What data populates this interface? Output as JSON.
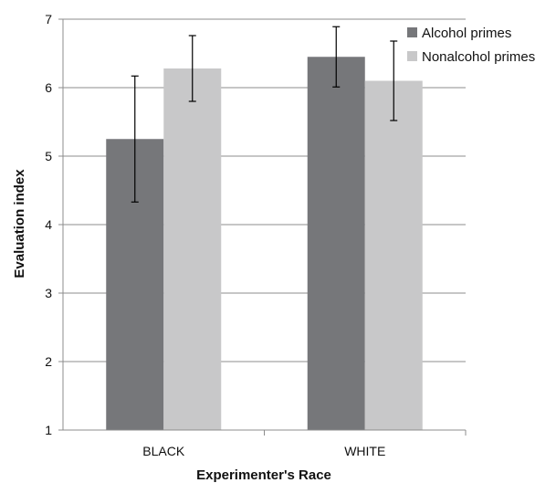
{
  "chart_data": {
    "type": "bar",
    "title": "",
    "xlabel": "Experimenter's Race",
    "ylabel": "Evaluation index",
    "categories": [
      "BLACK",
      "WHITE"
    ],
    "series": [
      {
        "name": "Alcohol primes",
        "values": [
          5.25,
          6.45
        ],
        "error": [
          0.92,
          0.44
        ],
        "color": "#76777a"
      },
      {
        "name": "Nonalcohol primes",
        "values": [
          6.28,
          6.1
        ],
        "error": [
          0.48,
          0.58
        ],
        "color": "#c8c8c9"
      }
    ],
    "ylim": [
      1,
      7
    ],
    "yticks": [
      "1",
      "2",
      "3",
      "4",
      "5",
      "6",
      "7"
    ],
    "grid": true,
    "legend_position": "top-right",
    "colors": {
      "grid": "#8c8c8c",
      "axis": "#8c8c8c",
      "errorbar": "#000000"
    }
  }
}
